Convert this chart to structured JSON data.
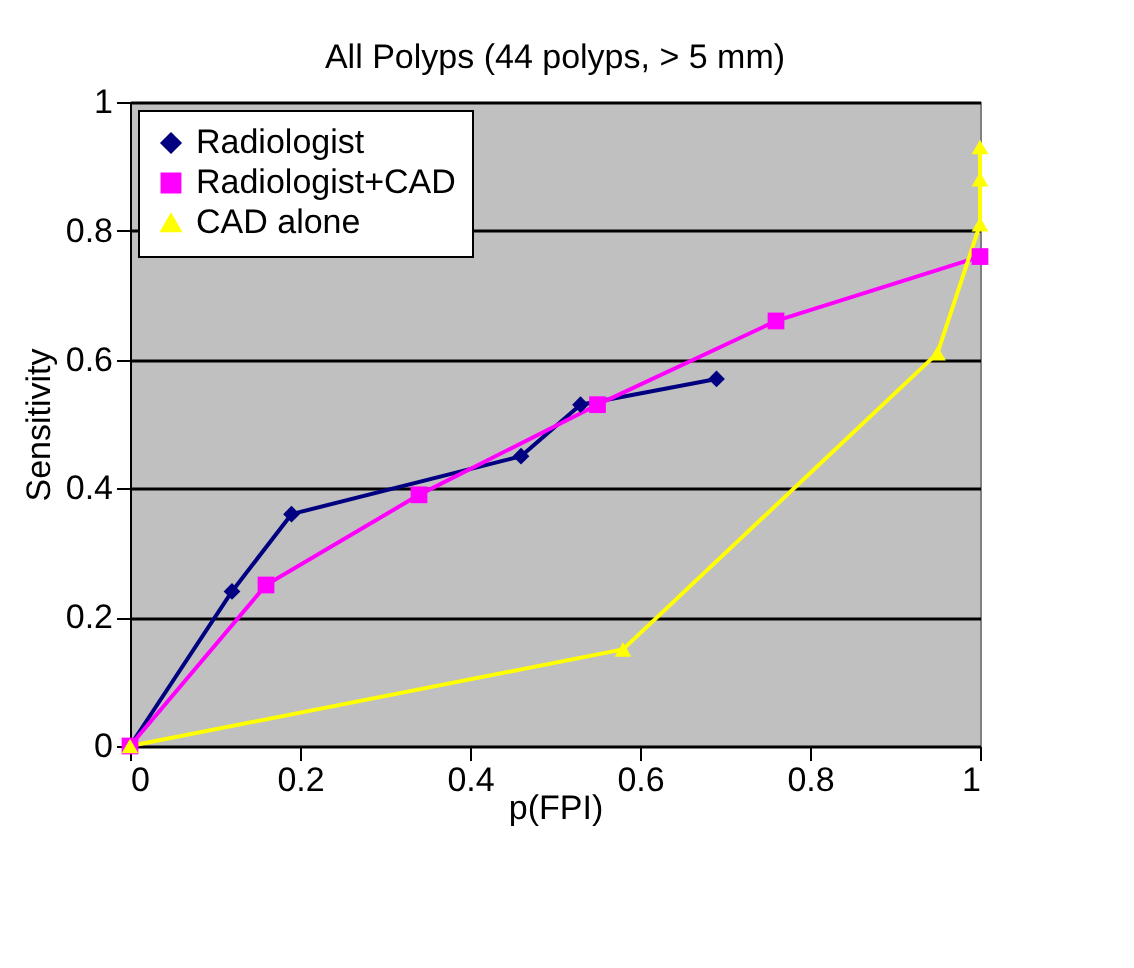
{
  "chart_data": {
    "type": "line",
    "title": "All Polyps (44 polyps, > 5 mm)",
    "xlabel": "p(FPI)",
    "ylabel": "Sensitivity",
    "series": [
      {
        "name": "Radiologist",
        "color": "#000080",
        "marker": "diamond",
        "x": [
          0,
          0.12,
          0.19,
          0.46,
          0.53,
          0.69
        ],
        "values": [
          0,
          0.24,
          0.36,
          0.45,
          0.53,
          0.57
        ]
      },
      {
        "name": "Radiologist+CAD",
        "color": "#ff00ff",
        "marker": "square",
        "x": [
          0,
          0.16,
          0.34,
          0.55,
          0.76,
          1.0
        ],
        "values": [
          0,
          0.25,
          0.39,
          0.53,
          0.66,
          0.76
        ]
      },
      {
        "name": "CAD alone",
        "color": "#ffff00",
        "marker": "triangle",
        "x": [
          0,
          0.58,
          0.95,
          1.0,
          1.0,
          1.0
        ],
        "values": [
          0,
          0.15,
          0.61,
          0.81,
          0.88,
          0.93
        ]
      }
    ],
    "xlim": [
      0,
      1
    ],
    "ylim": [
      0,
      1
    ],
    "xticks": [
      0,
      0.2,
      0.4,
      0.6,
      0.8,
      1
    ],
    "yticks": [
      0,
      0.2,
      0.4,
      0.6,
      0.8,
      1
    ],
    "grid": "y",
    "legend": "top left"
  }
}
